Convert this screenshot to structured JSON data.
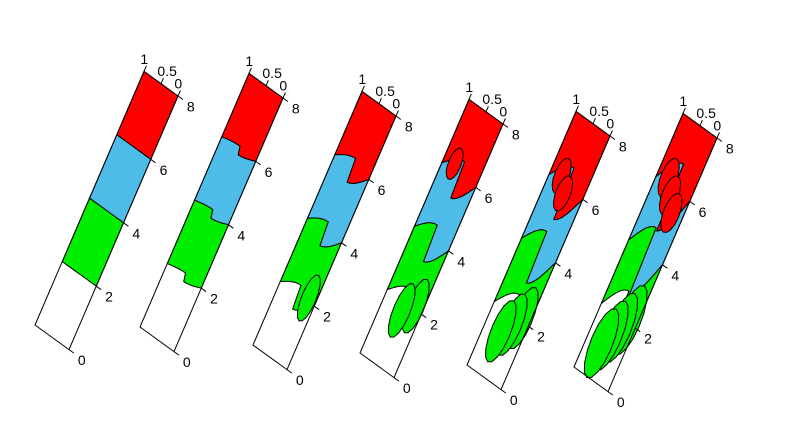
{
  "chart_data": {
    "type": "diagram",
    "panel_count": 6,
    "long_axis_ticks": [
      "0",
      "2",
      "4",
      "6",
      "8"
    ],
    "short_axis_ticks": [
      "1",
      "0.5",
      "0"
    ],
    "layers": [
      {
        "from": 6,
        "to": 8,
        "color": "#ff0000"
      },
      {
        "from": 4,
        "to": 6,
        "color": "#4ebce9"
      },
      {
        "from": 2,
        "to": 4,
        "color": "#00ee00"
      },
      {
        "from": 0,
        "to": 2,
        "color": "#ffffff"
      }
    ]
  },
  "colors": {
    "red_layer": "#ff0000",
    "blue_layer": "#4ebce9",
    "green_layer": "#00ee00",
    "empty_layer": "#ffffff"
  }
}
